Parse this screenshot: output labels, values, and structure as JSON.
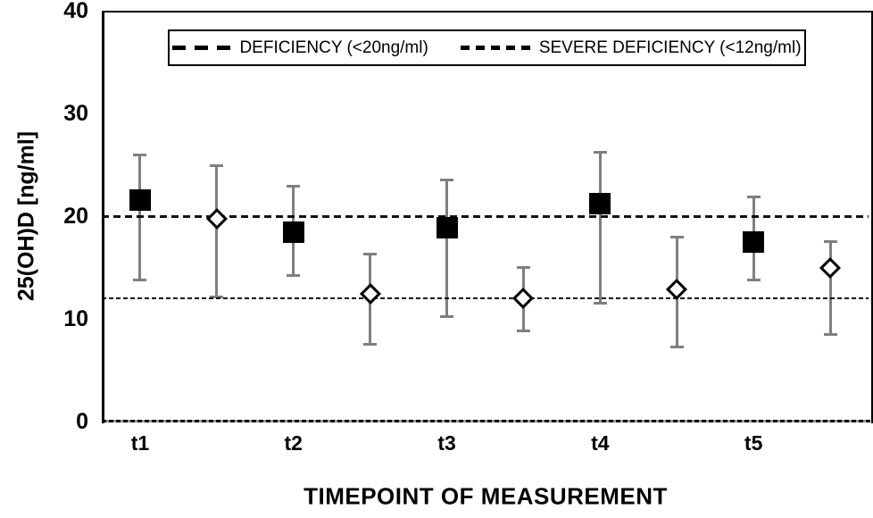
{
  "chart_data": {
    "type": "scatter",
    "title": "",
    "xlabel": "TIMEPOINT OF MEASUREMENT",
    "ylabel": "25(OH)D [ng/ml]",
    "ylim": [
      0,
      40
    ],
    "yticks": [
      0,
      10,
      20,
      30,
      40
    ],
    "categories": [
      "t1",
      "t2",
      "t3",
      "t4",
      "t5"
    ],
    "grid": "off",
    "legend_position": "top-inside-boxed",
    "reference_lines": [
      {
        "label": "DEFICIENCY (<20ng/ml)",
        "value": 20,
        "style": "long-dash",
        "color": "#000000"
      },
      {
        "label": "SEVERE DEFICIENCY (<12ng/ml)",
        "value": 12,
        "style": "short-dash",
        "color": "#000000"
      }
    ],
    "series": [
      {
        "name": "black-squares",
        "marker": "square",
        "marker_color": "#000000",
        "position": "left",
        "values": [
          21.6,
          18.4,
          18.9,
          21.2,
          17.5
        ],
        "err_high": [
          26.0,
          22.9,
          23.5,
          26.2,
          21.9
        ],
        "err_low": [
          13.8,
          14.2,
          10.2,
          11.5,
          13.8
        ]
      },
      {
        "name": "white-diamonds",
        "marker": "diamond",
        "marker_color": "#ffffff",
        "marker_border": "#000000",
        "position": "right",
        "values": [
          19.7,
          12.4,
          12.0,
          12.9,
          15.0
        ],
        "err_high": [
          24.9,
          16.3,
          15.0,
          18.0,
          17.5
        ],
        "err_low": [
          12.1,
          7.5,
          8.8,
          7.3,
          8.5
        ]
      }
    ],
    "error_bar_color": "#7f7f7f"
  }
}
